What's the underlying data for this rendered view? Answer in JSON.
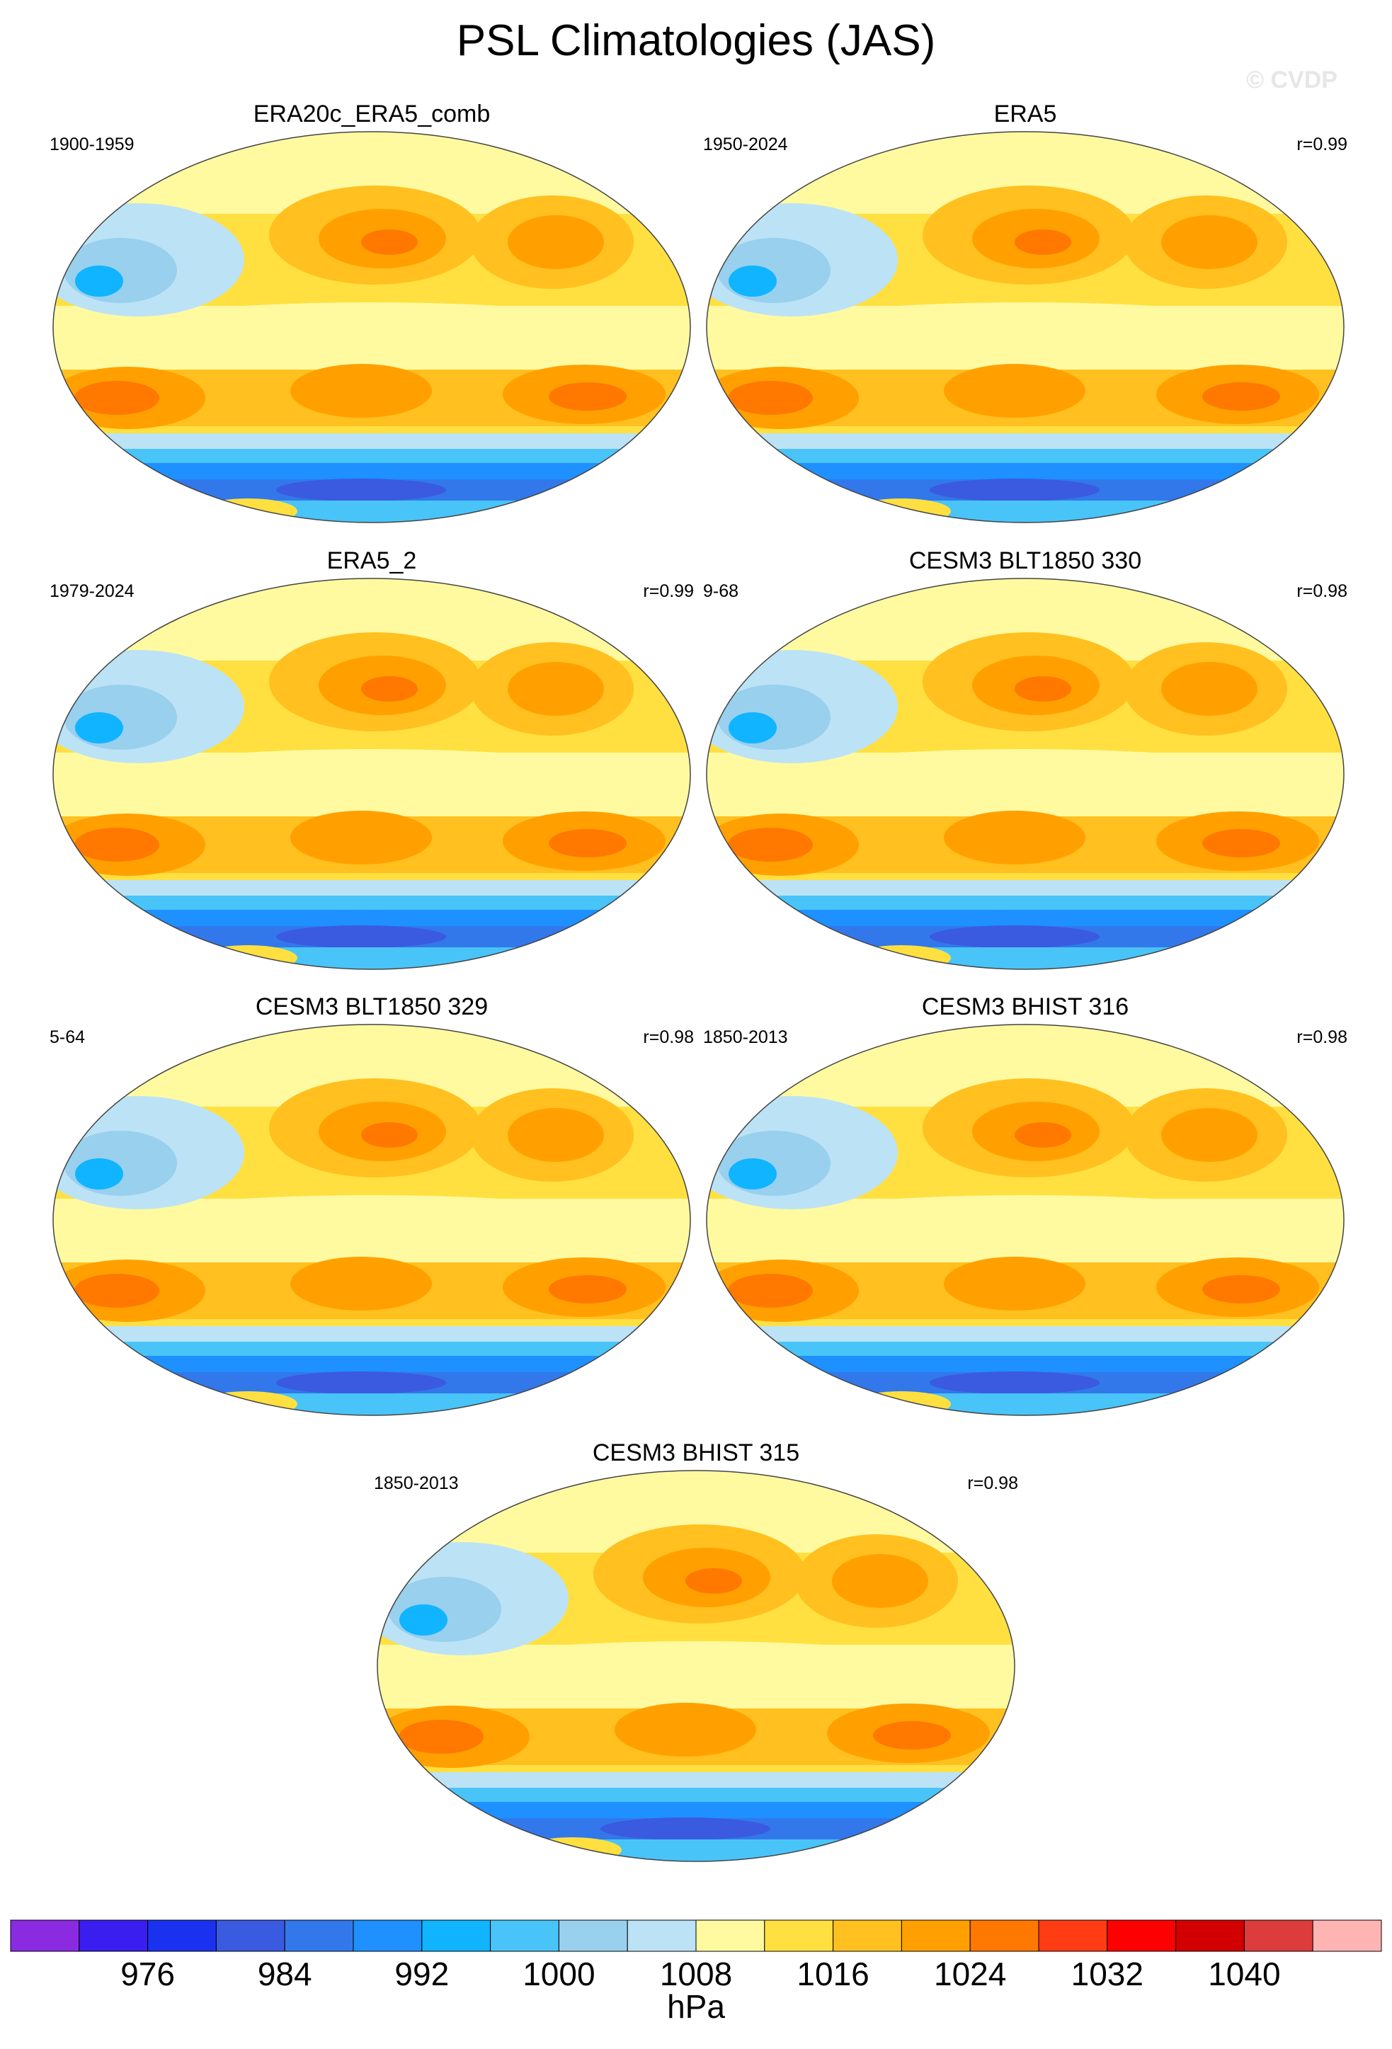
{
  "figure": {
    "title": "PSL Climatologies (JAS)",
    "watermark": "© CVDP"
  },
  "panels": [
    {
      "title": "ERA20c_ERA5_comb",
      "years": "1900-1959",
      "r": ""
    },
    {
      "title": "ERA5",
      "years": "1950-2024",
      "r": "r=0.99"
    },
    {
      "title": "ERA5_2",
      "years": "1979-2024",
      "r": "r=0.99"
    },
    {
      "title": "CESM3 BLT1850 330",
      "years": "9-68",
      "r": "r=0.98"
    },
    {
      "title": "CESM3 BLT1850 329",
      "years": "5-64",
      "r": "r=0.98"
    },
    {
      "title": "CESM3 BHIST 316",
      "years": "1850-2013",
      "r": "r=0.98"
    },
    {
      "title": "CESM3 BHIST 315",
      "years": "1850-2013",
      "r": "r=0.98"
    }
  ],
  "chart_data": {
    "type": "heatmap",
    "projection": "robinson-like global map",
    "colorbar": {
      "unit": "hPa",
      "tick_labels": [
        "976",
        "984",
        "992",
        "1000",
        "1008",
        "1016",
        "1024",
        "1032",
        "1040"
      ],
      "levels": [
        972,
        976,
        980,
        984,
        988,
        992,
        996,
        1000,
        1004,
        1008,
        1012,
        1016,
        1020,
        1024,
        1028,
        1032,
        1036,
        1040,
        1044
      ],
      "colors": [
        "#8a2be2",
        "#3a1ef0",
        "#1a32f0",
        "#3a5ae0",
        "#3278ea",
        "#1e90ff",
        "#10b4ff",
        "#48c4f8",
        "#98d0ee",
        "#bce2f6",
        "#fffaa0",
        "#ffe040",
        "#ffc020",
        "#ffa000",
        "#ff7800",
        "#ff3c14",
        "#ff0000",
        "#d20000",
        "#dc3c3c",
        "#ffb4b4"
      ]
    }
  }
}
